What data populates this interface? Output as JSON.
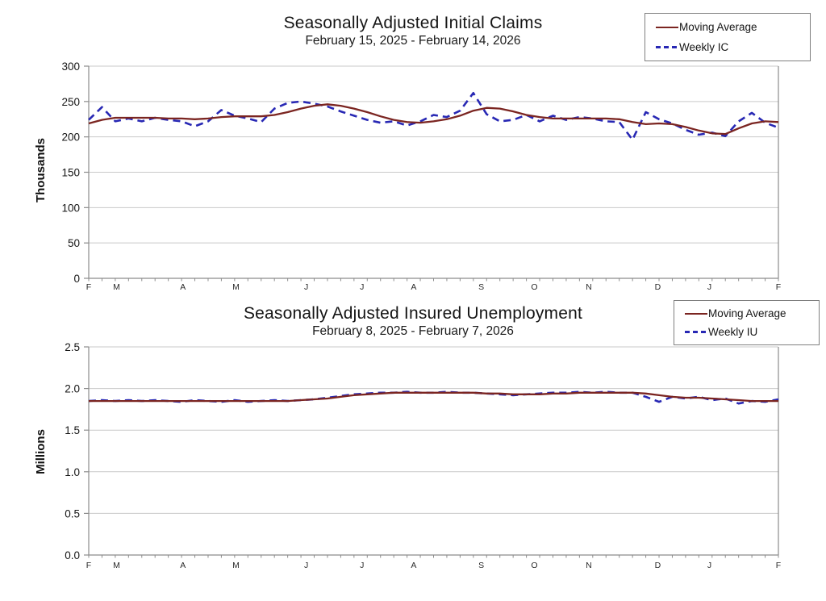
{
  "colors": {
    "moving_average": "#7B2521",
    "weekly": "#2828B4",
    "gridline": "#C9C9C9",
    "axis": "#8C8C8C",
    "text": "#151515"
  },
  "chart_data": [
    {
      "type": "line",
      "title": "Seasonally Adjusted Initial Claims",
      "subtitle": "February 15, 2025 - February 14, 2026",
      "ylabel": "Thousands",
      "xlabel": "",
      "ylim": [
        0,
        300
      ],
      "yticks": [
        0,
        50,
        100,
        150,
        200,
        250,
        300
      ],
      "ytick_labels": [
        "0",
        "50",
        "100",
        "150",
        "200",
        "250",
        "300"
      ],
      "grid": true,
      "legend_position": "top-right",
      "n_weeks": 53,
      "x_month_labels": [
        "F",
        "M",
        "A",
        "M",
        "J",
        "J",
        "A",
        "S",
        "O",
        "N",
        "D",
        "J",
        "F"
      ],
      "x_month_positions_weeks": [
        0,
        2.1,
        7.1,
        11.1,
        16.4,
        20.6,
        24.5,
        29.6,
        33.6,
        37.7,
        42.9,
        46.8,
        52
      ],
      "series": [
        {
          "name": "Moving Average",
          "color": "#7B2521",
          "style": "solid",
          "values": [
            219,
            224,
            227,
            227,
            227,
            227,
            226,
            226,
            225,
            226,
            228,
            229,
            229,
            229,
            231,
            235,
            240,
            244,
            246,
            244,
            240,
            235,
            229,
            224,
            221,
            220,
            222,
            225,
            230,
            237,
            241,
            240,
            236,
            231,
            228,
            226,
            226,
            226,
            226,
            226,
            225,
            221,
            218,
            219,
            218,
            214,
            209,
            205,
            204,
            212,
            219,
            222,
            221
          ]
        },
        {
          "name": "Weekly IC",
          "color": "#2828B4",
          "style": "dashed",
          "values": [
            224,
            242,
            222,
            226,
            222,
            227,
            224,
            222,
            215,
            222,
            238,
            230,
            226,
            221,
            240,
            248,
            250,
            247,
            243,
            236,
            230,
            224,
            220,
            222,
            216,
            222,
            231,
            228,
            237,
            262,
            232,
            222,
            224,
            231,
            222,
            230,
            224,
            228,
            226,
            222,
            221,
            196,
            235,
            225,
            219,
            210,
            203,
            206,
            201,
            222,
            234,
            220,
            213
          ]
        }
      ]
    },
    {
      "type": "line",
      "title": "Seasonally Adjusted Insured Unemployment",
      "subtitle": "February 8, 2025 - February 7, 2026",
      "ylabel": "Millions",
      "xlabel": "",
      "ylim": [
        0,
        2.5
      ],
      "yticks": [
        0,
        0.5,
        1.0,
        1.5,
        2.0,
        2.5
      ],
      "ytick_labels": [
        "0.0",
        "0.5",
        "1.0",
        "1.5",
        "2.0",
        "2.5"
      ],
      "grid": true,
      "legend_position": "top-right",
      "n_weeks": 53,
      "x_month_labels": [
        "F",
        "M",
        "A",
        "M",
        "J",
        "J",
        "A",
        "S",
        "O",
        "N",
        "D",
        "J",
        "F"
      ],
      "x_month_positions_weeks": [
        0,
        2.1,
        7.1,
        11.1,
        16.4,
        20.6,
        24.5,
        29.6,
        33.6,
        37.7,
        42.9,
        46.8,
        52
      ],
      "series": [
        {
          "name": "Moving Average",
          "color": "#7B2521",
          "style": "solid",
          "values": [
            1.85,
            1.85,
            1.85,
            1.85,
            1.85,
            1.85,
            1.85,
            1.85,
            1.85,
            1.85,
            1.85,
            1.85,
            1.85,
            1.85,
            1.85,
            1.85,
            1.86,
            1.87,
            1.88,
            1.9,
            1.92,
            1.93,
            1.94,
            1.95,
            1.95,
            1.95,
            1.95,
            1.95,
            1.95,
            1.95,
            1.94,
            1.94,
            1.93,
            1.93,
            1.93,
            1.94,
            1.94,
            1.95,
            1.95,
            1.95,
            1.95,
            1.95,
            1.94,
            1.92,
            1.9,
            1.89,
            1.89,
            1.88,
            1.87,
            1.86,
            1.85,
            1.85,
            1.85
          ]
        },
        {
          "name": "Weekly IU",
          "color": "#2828B4",
          "style": "dashed",
          "values": [
            1.85,
            1.86,
            1.85,
            1.86,
            1.85,
            1.86,
            1.85,
            1.84,
            1.86,
            1.85,
            1.84,
            1.86,
            1.84,
            1.85,
            1.86,
            1.85,
            1.86,
            1.87,
            1.89,
            1.91,
            1.93,
            1.94,
            1.95,
            1.95,
            1.96,
            1.95,
            1.95,
            1.96,
            1.95,
            1.95,
            1.94,
            1.93,
            1.92,
            1.93,
            1.94,
            1.95,
            1.95,
            1.96,
            1.95,
            1.96,
            1.95,
            1.95,
            1.9,
            1.84,
            1.9,
            1.88,
            1.9,
            1.86,
            1.88,
            1.82,
            1.85,
            1.84,
            1.87
          ]
        }
      ]
    }
  ]
}
